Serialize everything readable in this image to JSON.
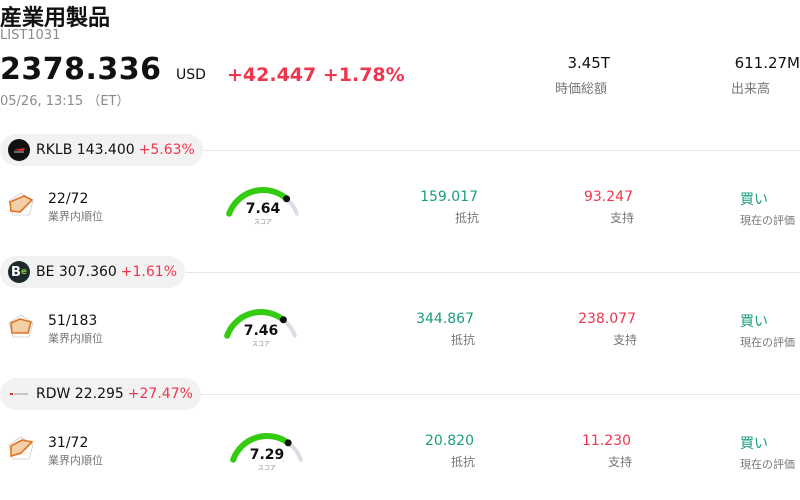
{
  "header": {
    "title": "産業用製品",
    "code": "LIST1031",
    "price": "2378.336",
    "currency": "USD",
    "change": "+42.447 +1.78%",
    "timestamp": "05/26, 13:15 （ET）"
  },
  "stats": {
    "market_cap": {
      "value": "3.45T",
      "label": "時価総額"
    },
    "volume": {
      "value": "611.27M",
      "label": "出来高"
    }
  },
  "stocks": [
    {
      "ticker": "RKLB 143.400",
      "pct": "+5.63%",
      "rank": "22/72",
      "rank_label": "業界内順位",
      "score": "7.64",
      "score_fraction": 0.764,
      "score_label": "スコア",
      "resistance": "159.017",
      "resistance_label": "抵抗",
      "support": "93.247",
      "support_label": "支持",
      "rating": "買い",
      "rating_label": "現在の評価"
    },
    {
      "ticker": "BE 307.360",
      "pct": "+1.61%",
      "logo_text": "B",
      "rank": "51/183",
      "rank_label": "業界内順位",
      "score": "7.46",
      "score_fraction": 0.746,
      "score_label": "スコア",
      "resistance": "344.867",
      "resistance_label": "抵抗",
      "support": "238.077",
      "support_label": "支持",
      "rating": "買い",
      "rating_label": "現在の評価"
    },
    {
      "ticker": "RDW 22.295",
      "pct": "+27.47%",
      "rank": "31/72",
      "rank_label": "業界内順位",
      "score": "7.29",
      "score_fraction": 0.729,
      "score_label": "スコア",
      "resistance": "20.820",
      "resistance_label": "抵抗",
      "support": "11.230",
      "support_label": "支持",
      "rating": "買い",
      "rating_label": "現在の評価"
    }
  ],
  "colors": {
    "up": "#f0364e",
    "resistance": "#1a9e7e",
    "gauge_fill": "#33cc11",
    "gauge_track": "#dcdce6"
  }
}
